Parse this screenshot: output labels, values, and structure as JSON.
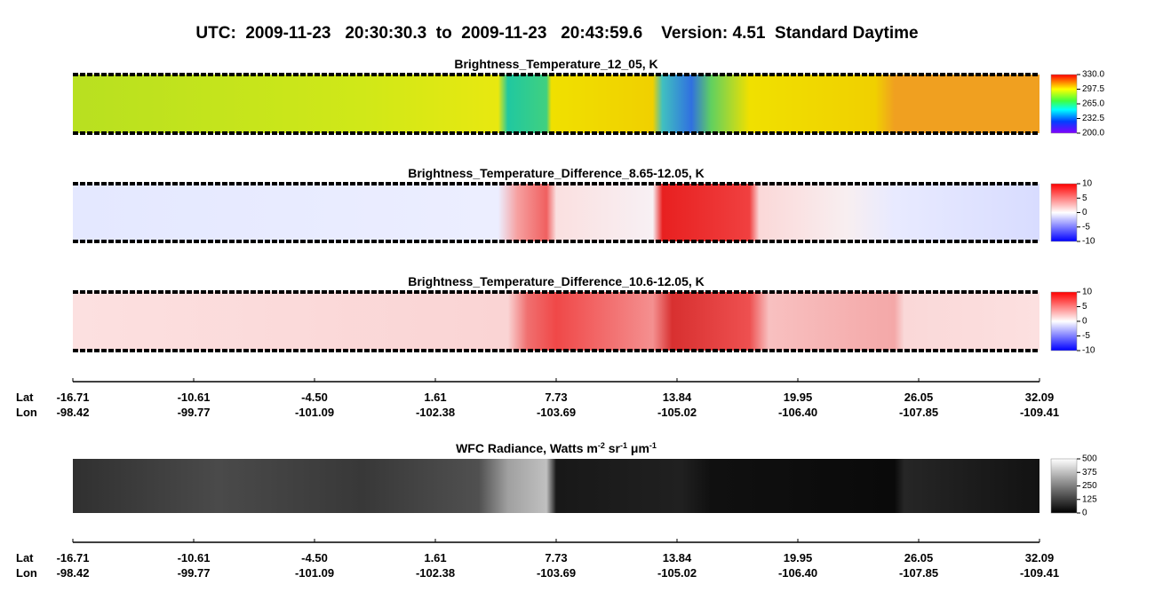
{
  "header": {
    "title": "UTC:  2009-11-23   20:30:30.3  to  2009-11-23   20:43:59.6    Version: 4.51  Standard Daytime"
  },
  "chart_data": [
    {
      "type": "image",
      "title": "Brightness_Temperature_12_05, K",
      "clim": [
        200,
        330
      ],
      "cticks": [
        {
          "value": 330,
          "label": "330.0"
        },
        297.5,
        {
          "value": 265,
          "label": "265.0"
        },
        232.5,
        {
          "value": 200,
          "label": "200.0"
        }
      ]
    },
    {
      "type": "image",
      "title": "Brightness_Temperature_Difference_8.65-12.05, K",
      "clim": [
        -10,
        10
      ],
      "cticks": [
        10,
        5,
        0,
        -5,
        -10
      ]
    },
    {
      "type": "image",
      "title": "Brightness_Temperature_Difference_10.6-12.05, K",
      "clim": [
        -10,
        10
      ],
      "cticks": [
        10,
        5,
        0,
        -5,
        -10
      ]
    },
    {
      "type": "image",
      "title_parts": [
        {
          "text": "WFC Radiance, Watts m"
        },
        {
          "text": "-2",
          "sup": true
        },
        {
          "text": " sr"
        },
        {
          "text": "-1",
          "sup": true
        },
        {
          "text": " μm"
        },
        {
          "text": "-1",
          "sup": true
        }
      ],
      "clim": [
        0,
        500
      ],
      "cticks": [
        500,
        375,
        250,
        125,
        0
      ]
    }
  ],
  "axes": [
    {
      "rows": [
        {
          "name": "Lat",
          "labels": [
            "-16.71",
            "-10.61",
            "-4.50",
            "1.61",
            "7.73",
            "13.84",
            "19.95",
            "26.05",
            "32.09"
          ]
        },
        {
          "name": "Lon",
          "labels": [
            "-98.42",
            "-99.77",
            "-101.09",
            "-102.38",
            "-103.69",
            "-105.02",
            "-106.40",
            "-107.85",
            "-109.41"
          ]
        }
      ]
    },
    {
      "rows": [
        {
          "name": "Lat",
          "labels": [
            "-16.71",
            "-10.61",
            "-4.50",
            "1.61",
            "7.73",
            "13.84",
            "19.95",
            "26.05",
            "32.09"
          ]
        },
        {
          "name": "Lon",
          "labels": [
            "-98.42",
            "-99.77",
            "-101.09",
            "-102.38",
            "-103.69",
            "-105.02",
            "-106.40",
            "-107.85",
            "-109.41"
          ]
        }
      ]
    }
  ]
}
